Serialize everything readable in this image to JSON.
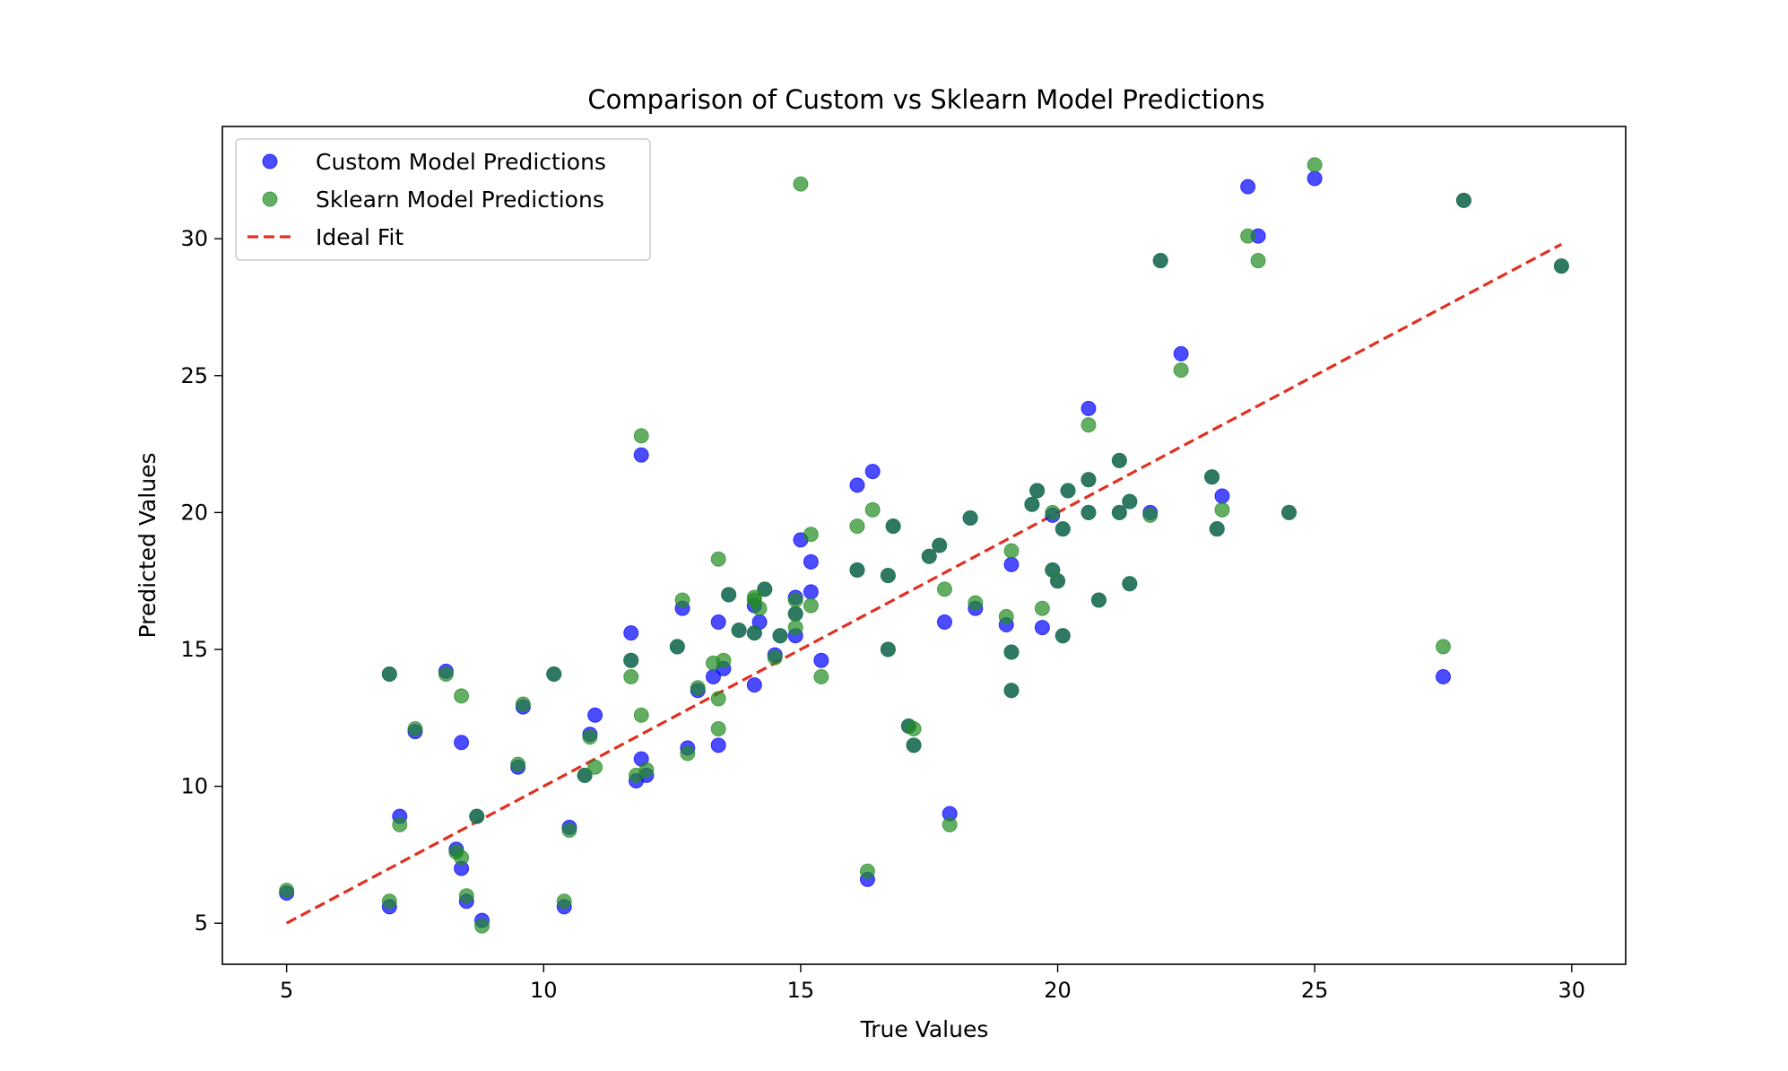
{
  "chart_data": {
    "type": "scatter",
    "title": "Comparison of Custom vs Sklearn Model Predictions",
    "xlabel": "True Values",
    "ylabel": "Predicted Values",
    "xlim": [
      3.75,
      31.05
    ],
    "ylim": [
      3.5,
      34.1
    ],
    "xticks": [
      5,
      10,
      15,
      20,
      25,
      30
    ],
    "yticks": [
      5,
      10,
      15,
      20,
      25,
      30
    ],
    "grid": false,
    "legend": {
      "position": "top-left",
      "entries": [
        {
          "label": "Custom Model Predictions",
          "kind": "marker",
          "series": 0
        },
        {
          "label": "Sklearn Model Predictions",
          "kind": "marker",
          "series": 1
        },
        {
          "label": "Ideal Fit",
          "kind": "dashed-line",
          "series": 2
        }
      ]
    },
    "series": [
      {
        "name": "Custom Model Predictions",
        "kind": "scatter",
        "color": "#0000ff",
        "alpha": 0.7,
        "points": [
          [
            5.0,
            6.1
          ],
          [
            7.0,
            5.6
          ],
          [
            7.0,
            14.1
          ],
          [
            7.2,
            8.9
          ],
          [
            7.5,
            12.0
          ],
          [
            8.1,
            14.2
          ],
          [
            8.3,
            7.7
          ],
          [
            8.4,
            11.6
          ],
          [
            8.4,
            7.0
          ],
          [
            8.5,
            5.8
          ],
          [
            8.7,
            8.9
          ],
          [
            8.8,
            5.1
          ],
          [
            9.5,
            10.7
          ],
          [
            9.6,
            12.9
          ],
          [
            10.2,
            14.1
          ],
          [
            10.4,
            5.6
          ],
          [
            10.5,
            8.5
          ],
          [
            10.8,
            10.4
          ],
          [
            10.9,
            11.9
          ],
          [
            11.0,
            12.6
          ],
          [
            11.7,
            15.6
          ],
          [
            11.7,
            14.6
          ],
          [
            11.8,
            10.2
          ],
          [
            11.9,
            22.1
          ],
          [
            11.9,
            11.0
          ],
          [
            12.0,
            10.4
          ],
          [
            12.6,
            15.1
          ],
          [
            12.7,
            16.5
          ],
          [
            12.8,
            11.4
          ],
          [
            13.0,
            13.5
          ],
          [
            13.3,
            14.0
          ],
          [
            13.4,
            16.0
          ],
          [
            13.4,
            11.5
          ],
          [
            13.5,
            14.3
          ],
          [
            13.6,
            17.0
          ],
          [
            13.8,
            15.7
          ],
          [
            14.1,
            16.6
          ],
          [
            14.1,
            13.7
          ],
          [
            14.1,
            15.6
          ],
          [
            14.2,
            16.0
          ],
          [
            14.3,
            17.2
          ],
          [
            14.5,
            14.8
          ],
          [
            14.6,
            15.5
          ],
          [
            14.9,
            16.9
          ],
          [
            14.9,
            15.5
          ],
          [
            14.9,
            16.3
          ],
          [
            15.0,
            19.0
          ],
          [
            15.2,
            18.2
          ],
          [
            15.2,
            17.1
          ],
          [
            15.4,
            14.6
          ],
          [
            16.1,
            21.0
          ],
          [
            16.1,
            17.9
          ],
          [
            16.3,
            6.6
          ],
          [
            16.4,
            21.5
          ],
          [
            16.7,
            17.7
          ],
          [
            16.7,
            15.0
          ],
          [
            16.8,
            19.5
          ],
          [
            17.1,
            12.2
          ],
          [
            17.2,
            11.5
          ],
          [
            17.5,
            18.4
          ],
          [
            17.7,
            18.8
          ],
          [
            17.8,
            16.0
          ],
          [
            17.9,
            9.0
          ],
          [
            18.3,
            19.8
          ],
          [
            18.4,
            16.5
          ],
          [
            19.0,
            15.9
          ],
          [
            19.1,
            18.1
          ],
          [
            19.1,
            14.9
          ],
          [
            19.1,
            13.5
          ],
          [
            19.5,
            20.3
          ],
          [
            19.6,
            20.8
          ],
          [
            19.7,
            15.8
          ],
          [
            19.9,
            19.9
          ],
          [
            19.9,
            17.9
          ],
          [
            20.0,
            17.5
          ],
          [
            20.1,
            19.4
          ],
          [
            20.1,
            15.5
          ],
          [
            20.2,
            20.8
          ],
          [
            20.6,
            23.8
          ],
          [
            20.6,
            21.2
          ],
          [
            20.6,
            20.0
          ],
          [
            20.8,
            16.8
          ],
          [
            21.2,
            21.9
          ],
          [
            21.2,
            20.0
          ],
          [
            21.4,
            20.4
          ],
          [
            21.4,
            17.4
          ],
          [
            21.8,
            20.0
          ],
          [
            22.0,
            29.2
          ],
          [
            22.4,
            25.8
          ],
          [
            23.0,
            21.3
          ],
          [
            23.1,
            19.4
          ],
          [
            23.2,
            20.6
          ],
          [
            23.7,
            31.9
          ],
          [
            23.9,
            30.1
          ],
          [
            24.5,
            20.0
          ],
          [
            25.0,
            32.2
          ],
          [
            27.5,
            14.0
          ],
          [
            27.9,
            31.4
          ],
          [
            29.8,
            29.0
          ]
        ]
      },
      {
        "name": "Sklearn Model Predictions",
        "kind": "scatter",
        "color": "#228b22",
        "alpha": 0.7,
        "points": [
          [
            5.0,
            6.2
          ],
          [
            7.0,
            5.8
          ],
          [
            7.0,
            14.1
          ],
          [
            7.2,
            8.6
          ],
          [
            7.5,
            12.1
          ],
          [
            8.1,
            14.1
          ],
          [
            8.3,
            7.6
          ],
          [
            8.4,
            13.3
          ],
          [
            8.4,
            7.4
          ],
          [
            8.5,
            6.0
          ],
          [
            8.7,
            8.9
          ],
          [
            8.8,
            4.9
          ],
          [
            9.5,
            10.8
          ],
          [
            9.6,
            13.0
          ],
          [
            10.2,
            14.1
          ],
          [
            10.4,
            5.8
          ],
          [
            10.5,
            8.4
          ],
          [
            10.8,
            10.4
          ],
          [
            10.9,
            11.8
          ],
          [
            11.0,
            10.7
          ],
          [
            11.7,
            14.6
          ],
          [
            11.7,
            14.0
          ],
          [
            11.8,
            10.4
          ],
          [
            11.9,
            22.8
          ],
          [
            11.9,
            12.6
          ],
          [
            12.0,
            10.6
          ],
          [
            12.6,
            15.1
          ],
          [
            12.7,
            16.8
          ],
          [
            12.8,
            11.2
          ],
          [
            13.0,
            13.6
          ],
          [
            13.3,
            14.5
          ],
          [
            13.4,
            18.3
          ],
          [
            13.4,
            12.1
          ],
          [
            13.4,
            13.2
          ],
          [
            13.5,
            14.6
          ],
          [
            13.6,
            17.0
          ],
          [
            13.8,
            15.7
          ],
          [
            14.1,
            16.8
          ],
          [
            14.1,
            16.9
          ],
          [
            14.1,
            15.6
          ],
          [
            14.2,
            16.5
          ],
          [
            14.3,
            17.2
          ],
          [
            14.5,
            14.7
          ],
          [
            14.6,
            15.5
          ],
          [
            14.9,
            16.8
          ],
          [
            14.9,
            15.8
          ],
          [
            14.9,
            16.3
          ],
          [
            15.0,
            32.0
          ],
          [
            15.2,
            19.2
          ],
          [
            15.2,
            16.6
          ],
          [
            15.4,
            14.0
          ],
          [
            16.1,
            19.5
          ],
          [
            16.1,
            17.9
          ],
          [
            16.3,
            6.9
          ],
          [
            16.4,
            20.1
          ],
          [
            16.7,
            17.7
          ],
          [
            16.7,
            15.0
          ],
          [
            16.8,
            19.5
          ],
          [
            17.1,
            12.2
          ],
          [
            17.2,
            12.1
          ],
          [
            17.2,
            11.5
          ],
          [
            17.5,
            18.4
          ],
          [
            17.7,
            18.8
          ],
          [
            17.8,
            17.2
          ],
          [
            17.9,
            8.6
          ],
          [
            18.3,
            19.8
          ],
          [
            18.4,
            16.7
          ],
          [
            19.0,
            16.2
          ],
          [
            19.1,
            18.6
          ],
          [
            19.1,
            14.9
          ],
          [
            19.1,
            13.5
          ],
          [
            19.5,
            20.3
          ],
          [
            19.6,
            20.8
          ],
          [
            19.7,
            16.5
          ],
          [
            19.9,
            20.0
          ],
          [
            19.9,
            17.9
          ],
          [
            20.0,
            17.5
          ],
          [
            20.1,
            19.4
          ],
          [
            20.1,
            15.5
          ],
          [
            20.2,
            20.8
          ],
          [
            20.6,
            23.2
          ],
          [
            20.6,
            21.2
          ],
          [
            20.6,
            20.0
          ],
          [
            20.8,
            16.8
          ],
          [
            21.2,
            21.9
          ],
          [
            21.2,
            20.0
          ],
          [
            21.4,
            20.4
          ],
          [
            21.4,
            17.4
          ],
          [
            21.8,
            19.9
          ],
          [
            22.0,
            29.2
          ],
          [
            22.4,
            25.2
          ],
          [
            23.0,
            21.3
          ],
          [
            23.1,
            19.4
          ],
          [
            23.2,
            20.1
          ],
          [
            23.7,
            30.1
          ],
          [
            23.9,
            29.2
          ],
          [
            24.5,
            20.0
          ],
          [
            25.0,
            32.7
          ],
          [
            27.5,
            15.1
          ],
          [
            27.9,
            31.4
          ],
          [
            29.8,
            29.0
          ]
        ]
      },
      {
        "name": "Ideal Fit",
        "kind": "line",
        "style": "dashed",
        "color": "#e03020",
        "points": [
          [
            5.0,
            5.0
          ],
          [
            29.8,
            29.8
          ]
        ]
      }
    ]
  }
}
